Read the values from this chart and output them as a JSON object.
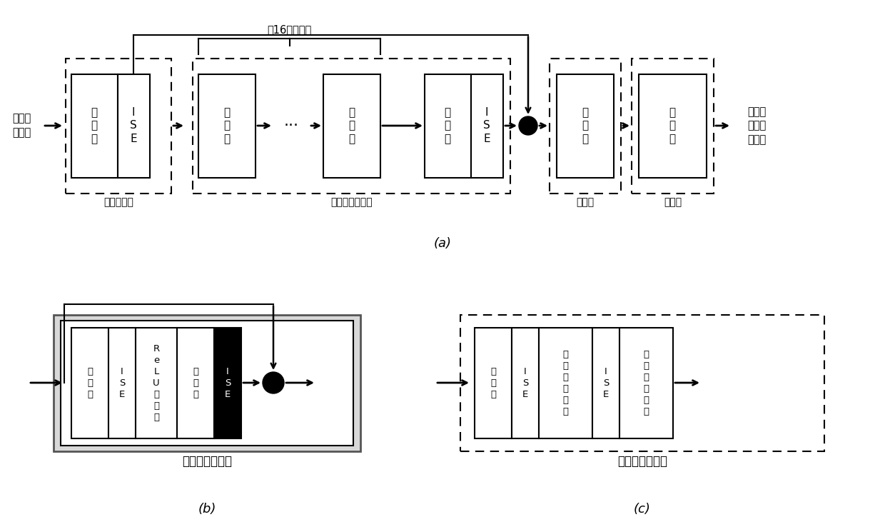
{
  "bg_color": "#ffffff",
  "title_a": "(a)",
  "title_b": "(b)",
  "title_c": "(c)",
  "label_input": "低分辨\n率图像",
  "label_output": "高分辨\n率重建\n后图像",
  "label_16res": "共16个残差块",
  "label_shallow": "浅层提取块",
  "label_deep": "残差深层提取块",
  "label_upsample": "放大块",
  "label_rebuild": "重建块",
  "label_resnet": "残差块网络结构",
  "label_enlarge": "放大块网络结构",
  "figsize": [
    12.4,
    7.31
  ],
  "dpi": 100
}
